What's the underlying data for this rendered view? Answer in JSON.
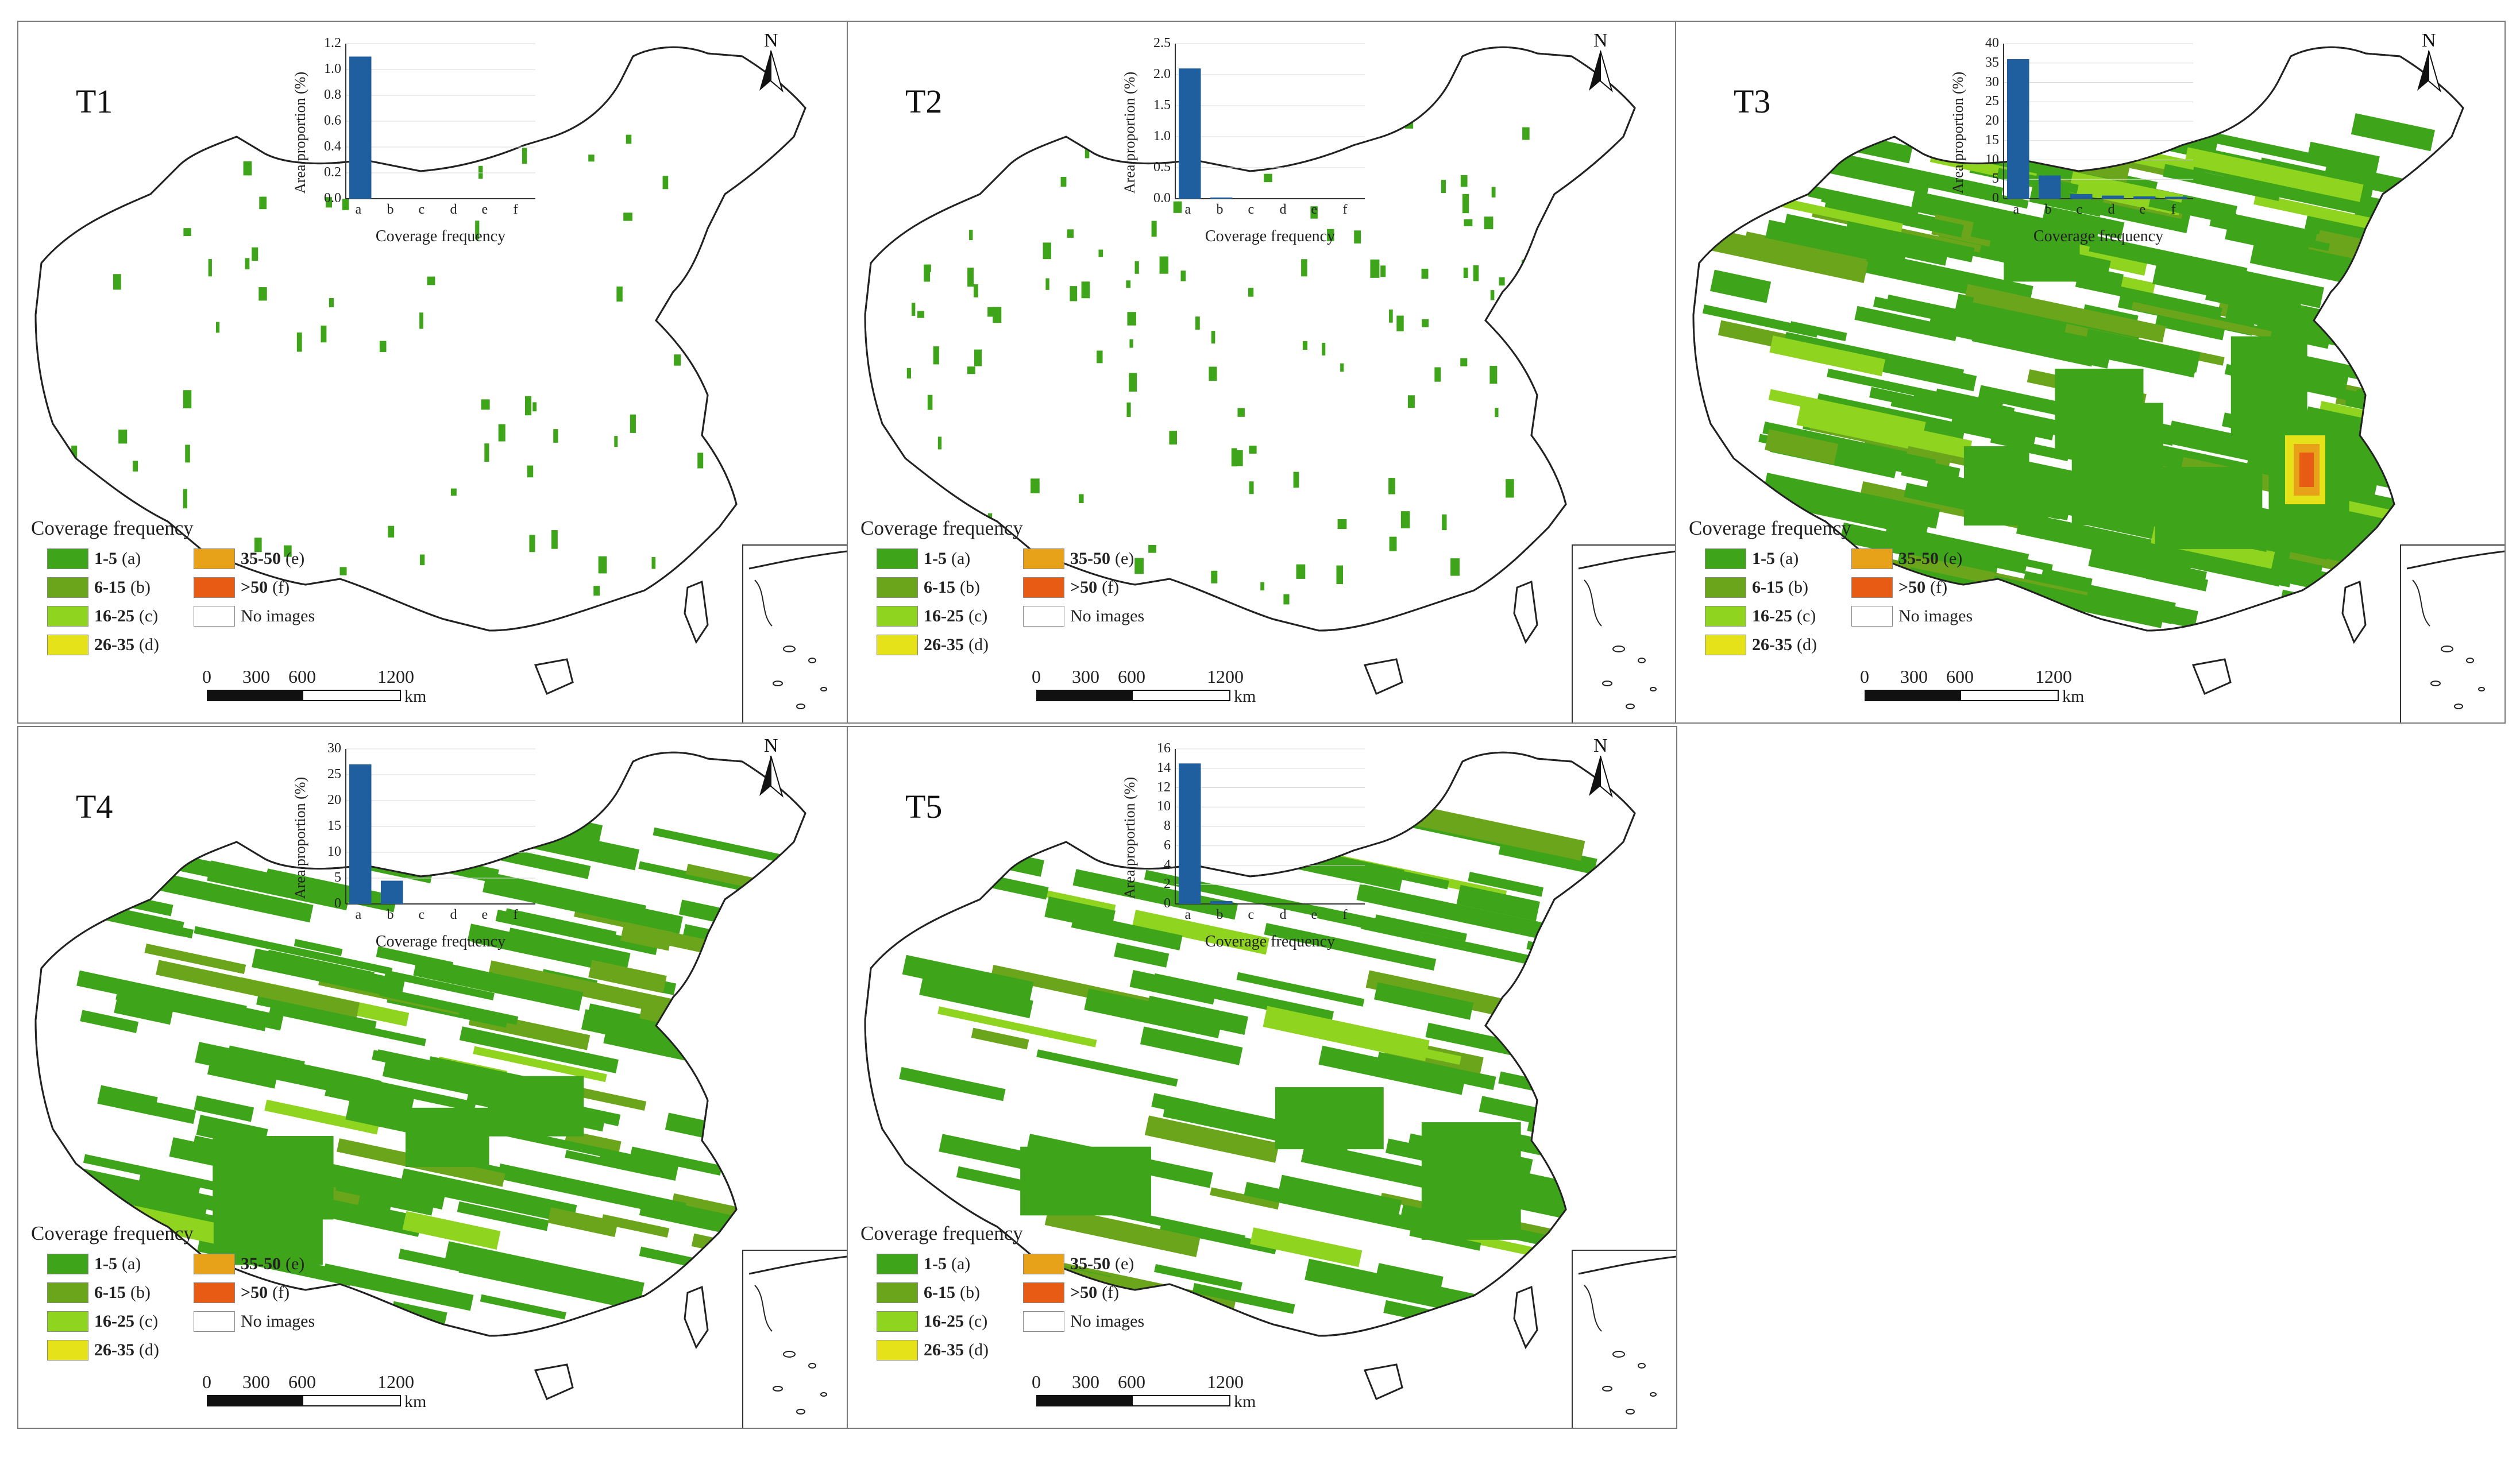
{
  "legend": {
    "title": "Coverage frequency",
    "items": [
      {
        "range": "1-5",
        "code": "(a)",
        "color": "#3ea51b"
      },
      {
        "range": "6-15",
        "code": "(b)",
        "color": "#6aa51b"
      },
      {
        "range": "16-25",
        "code": "(c)",
        "color": "#8fd41f"
      },
      {
        "range": "26-35",
        "code": "(d)",
        "color": "#e6e21a"
      },
      {
        "range": "35-50",
        "code": "(e)",
        "color": "#e8a21a"
      },
      {
        "range": ">50",
        "code": "(f)",
        "color": "#e85b14"
      },
      {
        "range": "",
        "code": "No images",
        "color": "#ffffff"
      }
    ]
  },
  "scale": {
    "ticks": [
      "0",
      "300",
      "600",
      "1200"
    ],
    "unit": "km"
  },
  "north_label": "N",
  "chart_common": {
    "ylabel": "Area proportion (%)",
    "xlabel": "Coverage frequency",
    "categories": [
      "a",
      "b",
      "c",
      "d",
      "e",
      "f"
    ],
    "bar_color": "#1f5fa0"
  },
  "panels": [
    {
      "label": "T1",
      "density": 0.05,
      "extent": "sparse"
    },
    {
      "label": "T2",
      "density": 0.08,
      "extent": "sparse"
    },
    {
      "label": "T3",
      "density": 0.9,
      "extent": "dense"
    },
    {
      "label": "T4",
      "density": 0.55,
      "extent": "medium"
    },
    {
      "label": "T5",
      "density": 0.35,
      "extent": "medium"
    }
  ],
  "chart_data": [
    {
      "type": "bar",
      "title": "T1",
      "xlabel": "Coverage frequency",
      "ylabel": "Area proportion (%)",
      "categories": [
        "a",
        "b",
        "c",
        "d",
        "e",
        "f"
      ],
      "values": [
        1.1,
        0,
        0,
        0,
        0,
        0
      ],
      "ylim": [
        0,
        1.2
      ],
      "yticks": [
        "0.0",
        "0.2",
        "0.4",
        "0.6",
        "0.8",
        "1.0",
        "1.2"
      ]
    },
    {
      "type": "bar",
      "title": "T2",
      "xlabel": "Coverage frequency",
      "ylabel": "Area proportion (%)",
      "categories": [
        "a",
        "b",
        "c",
        "d",
        "e",
        "f"
      ],
      "values": [
        2.1,
        0.02,
        0,
        0,
        0,
        0
      ],
      "ylim": [
        0,
        2.5
      ],
      "yticks": [
        "0.0",
        "0.5",
        "1.0",
        "1.5",
        "2.0",
        "2.5"
      ]
    },
    {
      "type": "bar",
      "title": "T3",
      "xlabel": "Coverage frequency",
      "ylabel": "Area proportion (%)",
      "categories": [
        "a",
        "b",
        "c",
        "d",
        "e",
        "f"
      ],
      "values": [
        36,
        6,
        1.2,
        0.8,
        0.6,
        0.5
      ],
      "ylim": [
        0,
        40
      ],
      "yticks": [
        "0",
        "5",
        "10",
        "15",
        "20",
        "25",
        "30",
        "35",
        "40"
      ]
    },
    {
      "type": "bar",
      "title": "T4",
      "xlabel": "Coverage frequency",
      "ylabel": "Area proportion (%)",
      "categories": [
        "a",
        "b",
        "c",
        "d",
        "e",
        "f"
      ],
      "values": [
        27,
        4.5,
        0,
        0,
        0,
        0
      ],
      "ylim": [
        0,
        30
      ],
      "yticks": [
        "0",
        "5",
        "10",
        "15",
        "20",
        "25",
        "30"
      ]
    },
    {
      "type": "bar",
      "title": "T5",
      "xlabel": "Coverage frequency",
      "ylabel": "Area proportion (%)",
      "categories": [
        "a",
        "b",
        "c",
        "d",
        "e",
        "f"
      ],
      "values": [
        14.5,
        0.3,
        0,
        0,
        0,
        0
      ],
      "ylim": [
        0,
        16
      ],
      "yticks": [
        "0",
        "2",
        "4",
        "6",
        "8",
        "10",
        "12",
        "14",
        "16"
      ]
    }
  ]
}
